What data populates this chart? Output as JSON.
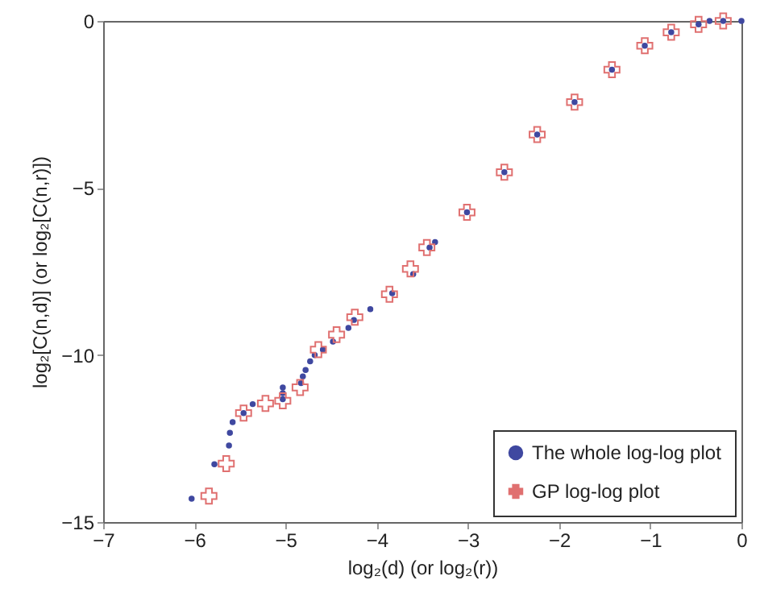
{
  "chart_data": {
    "type": "scatter",
    "xlabel": "log₂(d) (or  log₂(r))",
    "ylabel": "log₂[C(n,d)] (or log₂[C(n,r)])",
    "xlim": [
      -7,
      0
    ],
    "xticks": [
      -7,
      -6,
      -5,
      -4,
      -3,
      -2,
      -1,
      0
    ],
    "ylim": [
      -15,
      0
    ],
    "yticks": [
      -15,
      -10,
      -5,
      0
    ],
    "grid": false,
    "legend": "bottom right",
    "series": [
      {
        "name": "The whole log-log plot",
        "color": "#3f48a0",
        "marker": "circle",
        "x": [
          -6.03,
          -5.78,
          -5.62,
          -5.61,
          -5.58,
          -5.46,
          -5.36,
          -5.03,
          -5.03,
          -5.03,
          -4.83,
          -4.81,
          -4.78,
          -4.73,
          -4.68,
          -4.59,
          -4.48,
          -4.31,
          -4.25,
          -4.07,
          -3.83,
          -3.6,
          -3.42,
          -3.36,
          -3.01,
          -2.6,
          -2.24,
          -1.83,
          -1.42,
          -1.06,
          -0.77,
          -0.47,
          -0.35,
          -0.2,
          0
        ],
        "values": [
          -14.3,
          -13.27,
          -12.71,
          -12.33,
          -12.01,
          -11.74,
          -11.47,
          -10.97,
          -11.14,
          -11.32,
          -10.84,
          -10.64,
          -10.45,
          -10.19,
          -10.0,
          -9.84,
          -9.6,
          -9.19,
          -8.95,
          -8.63,
          -8.15,
          -7.58,
          -6.78,
          -6.62,
          -5.73,
          -4.53,
          -3.4,
          -2.43,
          -1.46,
          -0.74,
          -0.34,
          -0.1,
          0,
          0,
          0
        ]
      },
      {
        "name": "GP log-log plot",
        "color": "#e07070",
        "marker": "cross",
        "x": [
          -5.84,
          -5.65,
          -5.46,
          -5.22,
          -5.03,
          -4.84,
          -4.64,
          -4.44,
          -4.24,
          -3.86,
          -3.63,
          -3.45,
          -3.01,
          -2.6,
          -2.24,
          -1.83,
          -1.42,
          -1.06,
          -0.77,
          -0.47,
          -0.2
        ],
        "values": [
          -14.22,
          -13.25,
          -11.74,
          -11.45,
          -11.37,
          -10.97,
          -9.84,
          -9.39,
          -8.87,
          -8.18,
          -7.42,
          -6.78,
          -5.73,
          -4.53,
          -3.4,
          -2.43,
          -1.46,
          -0.74,
          -0.34,
          -0.1,
          0
        ]
      }
    ]
  }
}
